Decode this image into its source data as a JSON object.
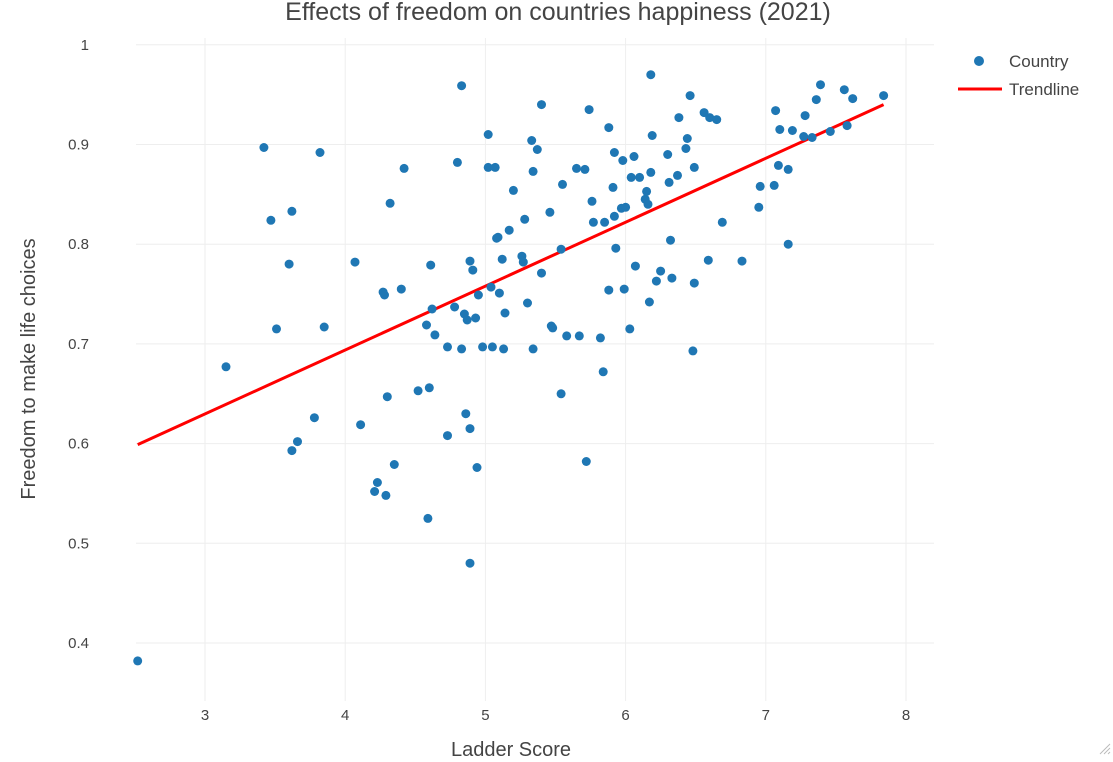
{
  "chart_data": {
    "type": "scatter",
    "title": "Effects of freedom on countries happiness (2021)",
    "xlabel": "Ladder Score",
    "ylabel": "Freedom to make life choices",
    "xlim": [
      2.3,
      8.2
    ],
    "ylim": [
      0.35,
      1.01
    ],
    "xticks": [
      3,
      4,
      5,
      6,
      7,
      8
    ],
    "yticks": [
      0.4,
      0.5,
      0.6,
      0.7,
      0.8,
      0.9,
      1
    ],
    "grid": true,
    "legend_position": "top-right",
    "series": [
      {
        "name": "Country",
        "mode": "markers",
        "color": "#1f77b4",
        "points": [
          [
            2.52,
            0.382
          ],
          [
            3.15,
            0.677
          ],
          [
            3.42,
            0.897
          ],
          [
            3.47,
            0.824
          ],
          [
            3.51,
            0.715
          ],
          [
            3.6,
            0.78
          ],
          [
            3.62,
            0.833
          ],
          [
            3.62,
            0.593
          ],
          [
            3.66,
            0.602
          ],
          [
            3.78,
            0.626
          ],
          [
            3.82,
            0.892
          ],
          [
            3.85,
            0.717
          ],
          [
            4.07,
            0.782
          ],
          [
            4.11,
            0.619
          ],
          [
            4.21,
            0.552
          ],
          [
            4.23,
            0.561
          ],
          [
            4.27,
            0.752
          ],
          [
            4.28,
            0.749
          ],
          [
            4.29,
            0.548
          ],
          [
            4.3,
            0.647
          ],
          [
            4.32,
            0.841
          ],
          [
            4.35,
            0.579
          ],
          [
            4.4,
            0.755
          ],
          [
            4.42,
            0.876
          ],
          [
            4.52,
            0.653
          ],
          [
            4.58,
            0.719
          ],
          [
            4.59,
            0.525
          ],
          [
            4.6,
            0.656
          ],
          [
            4.61,
            0.779
          ],
          [
            4.62,
            0.735
          ],
          [
            4.64,
            0.709
          ],
          [
            4.73,
            0.608
          ],
          [
            4.73,
            0.697
          ],
          [
            4.78,
            0.737
          ],
          [
            4.8,
            0.882
          ],
          [
            4.83,
            0.959
          ],
          [
            4.83,
            0.695
          ],
          [
            4.85,
            0.73
          ],
          [
            4.86,
            0.63
          ],
          [
            4.87,
            0.724
          ],
          [
            4.89,
            0.615
          ],
          [
            4.89,
            0.48
          ],
          [
            4.89,
            0.783
          ],
          [
            4.91,
            0.774
          ],
          [
            4.93,
            0.726
          ],
          [
            4.94,
            0.576
          ],
          [
            4.95,
            0.749
          ],
          [
            4.98,
            0.697
          ],
          [
            5.02,
            0.91
          ],
          [
            5.02,
            0.877
          ],
          [
            5.04,
            0.757
          ],
          [
            5.05,
            0.697
          ],
          [
            5.07,
            0.877
          ],
          [
            5.08,
            0.806
          ],
          [
            5.09,
            0.807
          ],
          [
            5.1,
            0.751
          ],
          [
            5.12,
            0.785
          ],
          [
            5.13,
            0.695
          ],
          [
            5.14,
            0.731
          ],
          [
            5.17,
            0.814
          ],
          [
            5.2,
            0.854
          ],
          [
            5.26,
            0.788
          ],
          [
            5.27,
            0.782
          ],
          [
            5.28,
            0.825
          ],
          [
            5.3,
            0.741
          ],
          [
            5.33,
            0.904
          ],
          [
            5.34,
            0.873
          ],
          [
            5.34,
            0.695
          ],
          [
            5.37,
            0.895
          ],
          [
            5.4,
            0.94
          ],
          [
            5.4,
            0.771
          ],
          [
            5.46,
            0.832
          ],
          [
            5.47,
            0.718
          ],
          [
            5.48,
            0.716
          ],
          [
            5.54,
            0.795
          ],
          [
            5.54,
            0.65
          ],
          [
            5.55,
            0.86
          ],
          [
            5.58,
            0.708
          ],
          [
            5.65,
            0.876
          ],
          [
            5.67,
            0.708
          ],
          [
            5.71,
            0.875
          ],
          [
            5.72,
            0.582
          ],
          [
            5.74,
            0.935
          ],
          [
            5.76,
            0.843
          ],
          [
            5.77,
            0.822
          ],
          [
            5.82,
            0.706
          ],
          [
            5.84,
            0.672
          ],
          [
            5.85,
            0.822
          ],
          [
            5.88,
            0.917
          ],
          [
            5.88,
            0.754
          ],
          [
            5.91,
            0.857
          ],
          [
            5.92,
            0.892
          ],
          [
            5.92,
            0.828
          ],
          [
            5.93,
            0.796
          ],
          [
            5.97,
            0.836
          ],
          [
            5.98,
            0.884
          ],
          [
            5.99,
            0.755
          ],
          [
            6.0,
            0.837
          ],
          [
            6.03,
            0.715
          ],
          [
            6.04,
            0.867
          ],
          [
            6.06,
            0.888
          ],
          [
            6.07,
            0.778
          ],
          [
            6.1,
            0.867
          ],
          [
            6.14,
            0.845
          ],
          [
            6.15,
            0.853
          ],
          [
            6.16,
            0.84
          ],
          [
            6.17,
            0.742
          ],
          [
            6.18,
            0.97
          ],
          [
            6.18,
            0.872
          ],
          [
            6.19,
            0.909
          ],
          [
            6.22,
            0.763
          ],
          [
            6.25,
            0.773
          ],
          [
            6.3,
            0.89
          ],
          [
            6.31,
            0.862
          ],
          [
            6.32,
            0.804
          ],
          [
            6.33,
            0.766
          ],
          [
            6.37,
            0.869
          ],
          [
            6.38,
            0.927
          ],
          [
            6.43,
            0.896
          ],
          [
            6.44,
            0.906
          ],
          [
            6.46,
            0.949
          ],
          [
            6.48,
            0.693
          ],
          [
            6.49,
            0.761
          ],
          [
            6.49,
            0.877
          ],
          [
            6.56,
            0.932
          ],
          [
            6.59,
            0.784
          ],
          [
            6.6,
            0.927
          ],
          [
            6.65,
            0.925
          ],
          [
            6.69,
            0.822
          ],
          [
            6.83,
            0.783
          ],
          [
            6.95,
            0.837
          ],
          [
            6.96,
            0.858
          ],
          [
            7.06,
            0.859
          ],
          [
            7.07,
            0.934
          ],
          [
            7.09,
            0.879
          ],
          [
            7.1,
            0.915
          ],
          [
            7.16,
            0.875
          ],
          [
            7.16,
            0.8
          ],
          [
            7.19,
            0.914
          ],
          [
            7.27,
            0.908
          ],
          [
            7.28,
            0.929
          ],
          [
            7.33,
            0.907
          ],
          [
            7.36,
            0.945
          ],
          [
            7.39,
            0.96
          ],
          [
            7.46,
            0.913
          ],
          [
            7.56,
            0.955
          ],
          [
            7.58,
            0.919
          ],
          [
            7.62,
            0.946
          ],
          [
            7.84,
            0.949
          ]
        ]
      },
      {
        "name": "Trendline",
        "mode": "lines",
        "color": "#ff0000",
        "x": [
          2.52,
          7.84
        ],
        "y": [
          0.599,
          0.94
        ]
      }
    ]
  }
}
